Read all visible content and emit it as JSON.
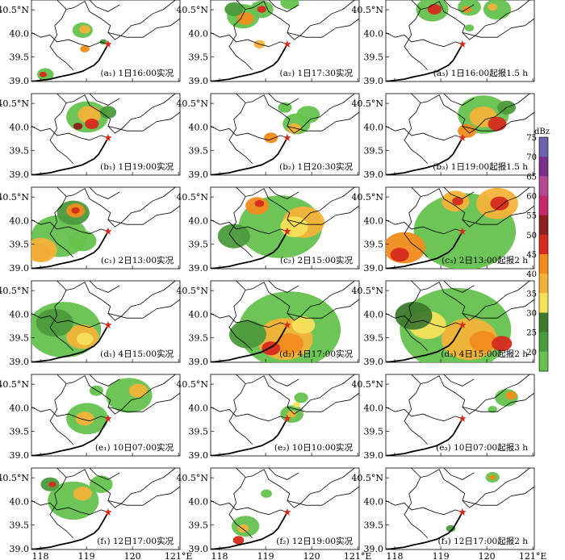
{
  "figure": {
    "panels": [
      [
        {
          "label": "(a₁) 1日16:00实况"
        },
        {
          "label": "(a₂) 1日17:30实况"
        },
        {
          "label": "(a₃) 1日16:00起报1.5 h"
        }
      ],
      [
        {
          "label": "(b₁) 1日19:00实况"
        },
        {
          "label": "(b₂) 1日20:30实况"
        },
        {
          "label": "(b₃) 1日19:00起报1.5 h"
        }
      ],
      [
        {
          "label": "(c₁) 2日13:00实况"
        },
        {
          "label": "(c₂) 2日15:00实况"
        },
        {
          "label": "(c₃) 2日13:00起报2 h"
        }
      ],
      [
        {
          "label": "(d₁) 4日15:00实况"
        },
        {
          "label": "(d₂) 4日17:00实况"
        },
        {
          "label": "(d₃) 4日15:00起报2 h"
        }
      ],
      [
        {
          "label": "(e₁) 10日07:00实况"
        },
        {
          "label": "(e₂) 10日10:00实况"
        },
        {
          "label": "(e₃) 10日07:00起报3 h"
        }
      ],
      [
        {
          "label": "(f₁) 12日17:00实况"
        },
        {
          "label": "(f₂) 12日19:00实况"
        },
        {
          "label": "(f₃) 12日17:00起报2 h"
        }
      ]
    ],
    "y_ticks": [
      "40.5°N",
      "40.0",
      "39.5",
      "39.0"
    ],
    "x_ticks": [
      "118",
      "119",
      "120",
      "121°E"
    ],
    "colorbar": {
      "unit": "dBz",
      "levels": [
        "75",
        "70",
        "65",
        "60",
        "55",
        "50",
        "45",
        "40",
        "35",
        "30",
        "25",
        "20"
      ],
      "colors": [
        "#6a64ad",
        "#7a2f8a",
        "#b14a93",
        "#c7276f",
        "#8e1f1f",
        "#d62a1f",
        "#f08c1e",
        "#f3b33a",
        "#f5e25a",
        "#3e7a2e",
        "#4b9a3c",
        "#66c24e"
      ]
    },
    "station_marker_color": "#d62a1f"
  }
}
